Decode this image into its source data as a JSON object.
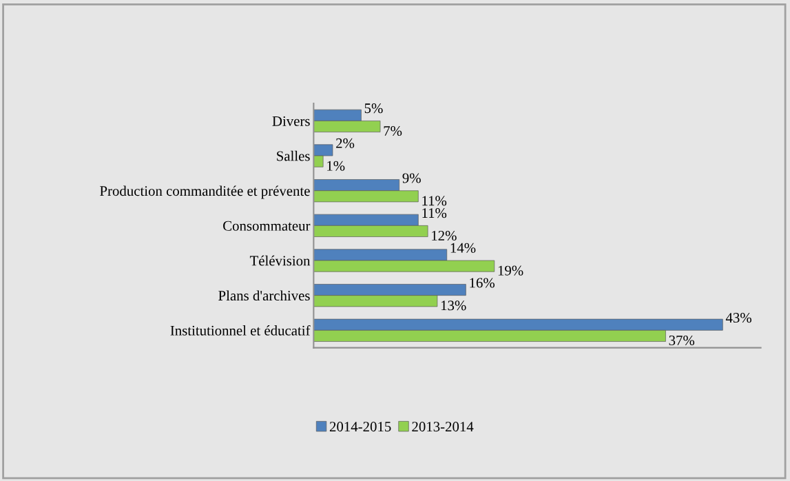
{
  "chart_data": {
    "type": "bar",
    "orientation": "horizontal",
    "categories": [
      "Divers",
      "Salles",
      "Production commanditée et prévente",
      "Consommateur",
      "Télévision",
      "Plans d'archives",
      "Institutionnel et éducatif"
    ],
    "series": [
      {
        "name": "2014-2015",
        "color": "#4f81bd",
        "values": [
          5,
          2,
          9,
          11,
          14,
          16,
          43
        ],
        "value_labels": [
          "5%",
          "2%",
          "9%",
          "11%",
          "14%",
          "16%",
          "43%"
        ]
      },
      {
        "name": "2013-2014",
        "color": "#92d050",
        "values": [
          7,
          1,
          11,
          12,
          19,
          13,
          37
        ],
        "value_labels": [
          "7%",
          "1%",
          "11%",
          "12%",
          "19%",
          "13%",
          "37%"
        ]
      }
    ],
    "xlim": [
      0,
      47
    ],
    "tick_labels": "y",
    "grid": false,
    "legend": "bottom"
  }
}
